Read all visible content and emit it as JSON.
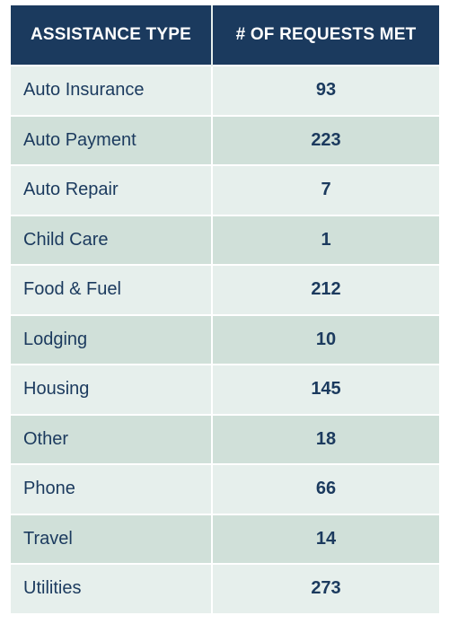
{
  "chart_data": {
    "type": "table",
    "columns": [
      "ASSISTANCE TYPE",
      "# OF REQUESTS MET"
    ],
    "rows": [
      {
        "type": "Auto Insurance",
        "count": 93
      },
      {
        "type": "Auto Payment",
        "count": 223
      },
      {
        "type": "Auto Repair",
        "count": 7
      },
      {
        "type": "Child Care",
        "count": 1
      },
      {
        "type": "Food & Fuel",
        "count": 212
      },
      {
        "type": "Lodging",
        "count": 10
      },
      {
        "type": "Housing",
        "count": 145
      },
      {
        "type": "Other",
        "count": 18
      },
      {
        "type": "Phone",
        "count": 66
      },
      {
        "type": "Travel",
        "count": 14
      },
      {
        "type": "Utilities",
        "count": 273
      }
    ]
  },
  "colors": {
    "header_bg": "#1b3a5e",
    "header_text": "#ffffff",
    "row_light": "#e6efec",
    "row_dark": "#d0e0d9",
    "body_text": "#1b3a5e"
  }
}
